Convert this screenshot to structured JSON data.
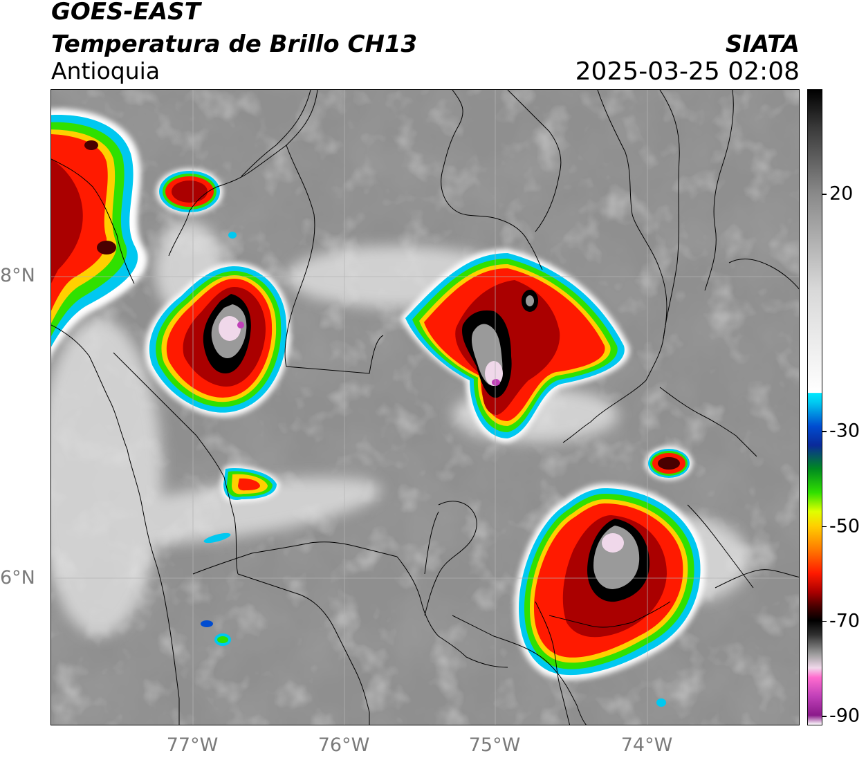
{
  "header": {
    "satellite": "GOES-EAST",
    "product": "Temperatura de Brillo CH13",
    "region": "Antioquia",
    "agency": "SIATA",
    "datetime": "2025-03-25 02:08"
  },
  "axes": {
    "lat_labels": [
      "8°N",
      "6°N"
    ],
    "lon_labels": [
      "77°W",
      "76°W",
      "75°W",
      "74°W"
    ]
  },
  "colorbar": {
    "tick_labels": [
      "20",
      "-30",
      "-50",
      "-70",
      "-90"
    ],
    "tick_values": [
      20,
      -30,
      -50,
      -70,
      -90
    ],
    "range": [
      -92,
      42
    ],
    "stops": [
      {
        "v": -92,
        "c": "#ffffff"
      },
      {
        "v": -90,
        "c": "#8a1a8a"
      },
      {
        "v": -86,
        "c": "#c040b8"
      },
      {
        "v": -82,
        "c": "#ff6ccf"
      },
      {
        "v": -80,
        "c": "#f0d8ea"
      },
      {
        "v": -77,
        "c": "#9a9a9a"
      },
      {
        "v": -73,
        "c": "#303030"
      },
      {
        "v": -70,
        "c": "#000000"
      },
      {
        "v": -67,
        "c": "#4a0000"
      },
      {
        "v": -64,
        "c": "#aa0000"
      },
      {
        "v": -60,
        "c": "#ff1a00"
      },
      {
        "v": -55,
        "c": "#ff7a00"
      },
      {
        "v": -50,
        "c": "#ffd000"
      },
      {
        "v": -47,
        "c": "#e0ff00"
      },
      {
        "v": -43,
        "c": "#30e000"
      },
      {
        "v": -38,
        "c": "#008a20"
      },
      {
        "v": -33,
        "c": "#0a2a9a"
      },
      {
        "v": -29,
        "c": "#004cd0"
      },
      {
        "v": -24,
        "c": "#00c8f0"
      },
      {
        "v": -22,
        "c": "#00e8ff"
      },
      {
        "v": -21.9,
        "c": "#ffffff"
      },
      {
        "v": 0,
        "c": "#d8d8d8"
      },
      {
        "v": 20,
        "c": "#8a8a8a"
      },
      {
        "v": 34,
        "c": "#3a3a3a"
      },
      {
        "v": 42,
        "c": "#000000"
      }
    ]
  },
  "colors": {
    "background": "#8c8c8c",
    "border_line": "#000000",
    "grid_line": "#b4b4b4"
  },
  "storms": [
    {
      "name": "nw-coast-storm"
    },
    {
      "name": "small-north-cell"
    },
    {
      "name": "west-antioquia-storm"
    },
    {
      "name": "central-antioquia-storm"
    },
    {
      "name": "southeast-storm"
    },
    {
      "name": "east-small-cell"
    },
    {
      "name": "chocó-small-cell"
    }
  ]
}
